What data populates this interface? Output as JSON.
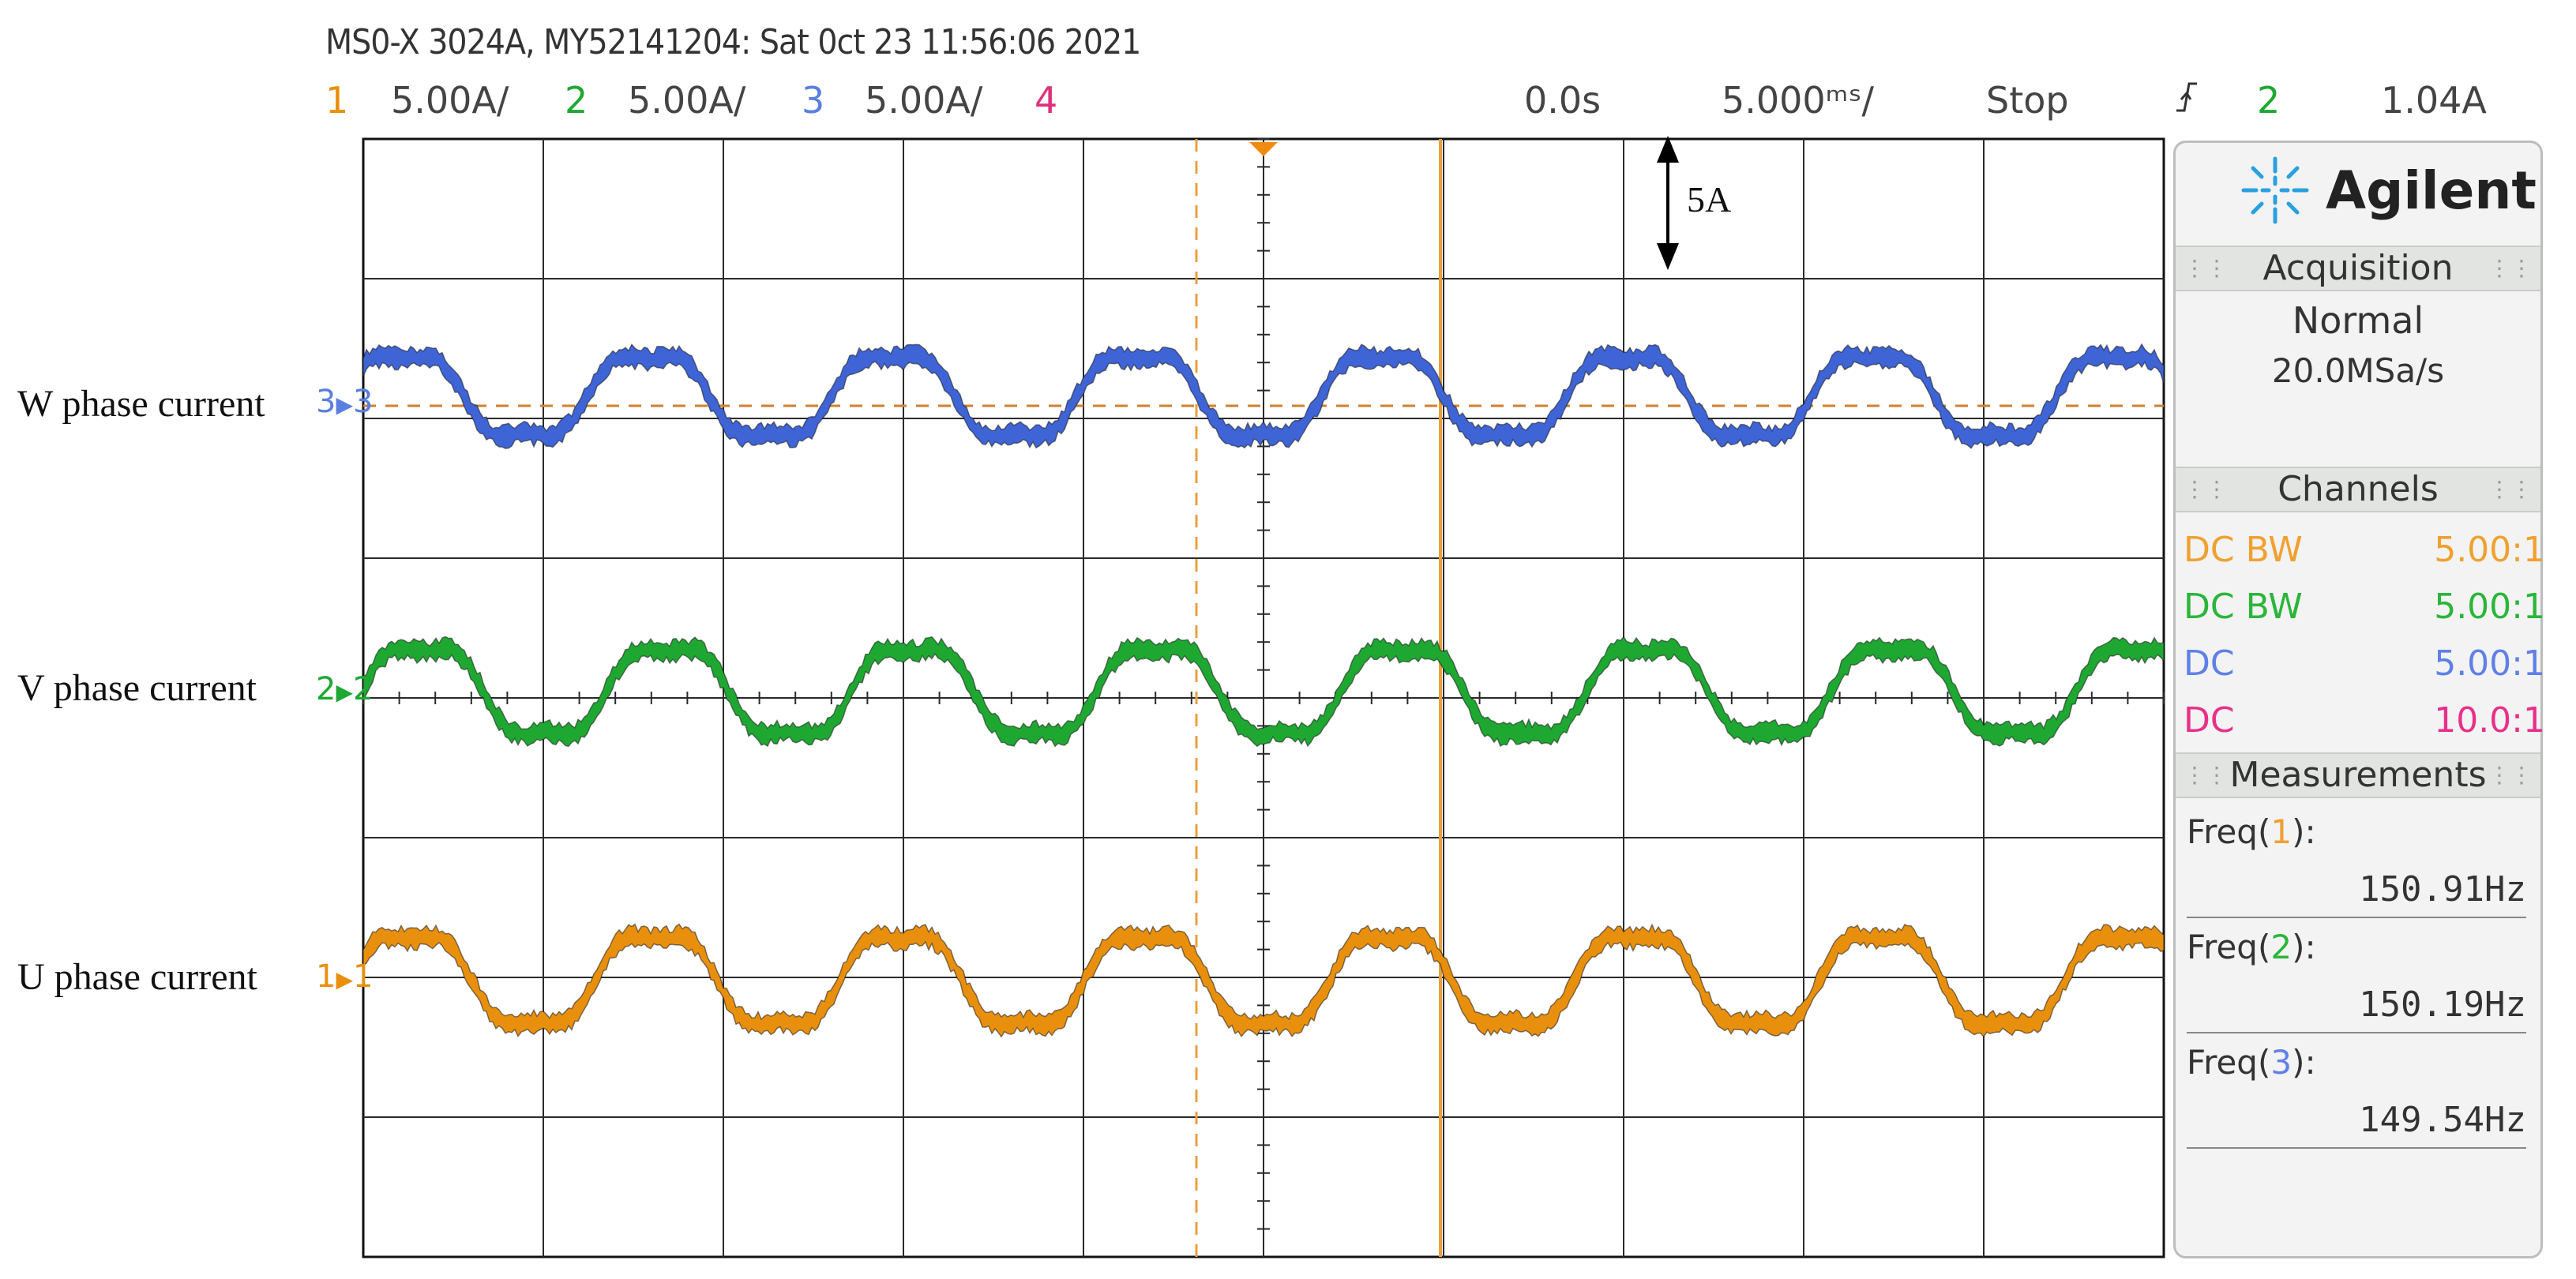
{
  "header": {
    "title": "MS0-X 3024A, MY52141204: Sat 0ct 23 11:56:06 2021",
    "ch1_num": "1",
    "ch1_scale": "5.00A/",
    "ch2_num": "2",
    "ch2_scale": "5.00A/",
    "ch3_num": "3",
    "ch3_scale": "5.00A/",
    "ch4_num": "4",
    "time_offset": "0.0s",
    "time_scale": "5.000ᵐˢ/",
    "run_state": "Stop",
    "trigger_icon": "trigger-edge-icon",
    "trigger_channel": "2",
    "trigger_level": "1.04A"
  },
  "annotation": {
    "scale_label": "5A"
  },
  "traces": [
    {
      "label": "W phase current",
      "channel": "3",
      "color": "#3f64d6"
    },
    {
      "label": "V phase current",
      "channel": "2",
      "color": "#1ea832"
    },
    {
      "label": "U phase current",
      "channel": "1",
      "color": "#e8900e"
    }
  ],
  "panel": {
    "brand": "Agilent",
    "acquisition_title": "Acquisition",
    "acquisition_mode": "Normal",
    "sample_rate": "20.0MSa/s",
    "channels_title": "Channels",
    "channels": [
      {
        "coupling": "DC BW",
        "ratio": "5.00:1",
        "color": "#f0a030"
      },
      {
        "coupling": "DC BW",
        "ratio": "5.00:1",
        "color": "#2bb53a"
      },
      {
        "coupling": "DC",
        "ratio": "5.00:1",
        "color": "#6080e8"
      },
      {
        "coupling": "DC",
        "ratio": "10.0:1",
        "color": "#e8308a"
      }
    ],
    "measurements_title": "Measurements",
    "measurements": [
      {
        "prefix": "Freq(",
        "channel": "1",
        "suffix": "):",
        "value": "150.91Hz",
        "color": "#f0a030"
      },
      {
        "prefix": "Freq(",
        "channel": "2",
        "suffix": "):",
        "value": "150.19Hz",
        "color": "#2bb53a"
      },
      {
        "prefix": "Freq(",
        "channel": "3",
        "suffix": "):",
        "value": "149.54Hz",
        "color": "#6080e8"
      }
    ]
  },
  "colors": {
    "ch1": "#e8900e",
    "ch2": "#1ea832",
    "ch3": "#3f64d6",
    "ch4": "#e0307a",
    "grid": "#111111",
    "cursor": "#e8a040"
  }
}
